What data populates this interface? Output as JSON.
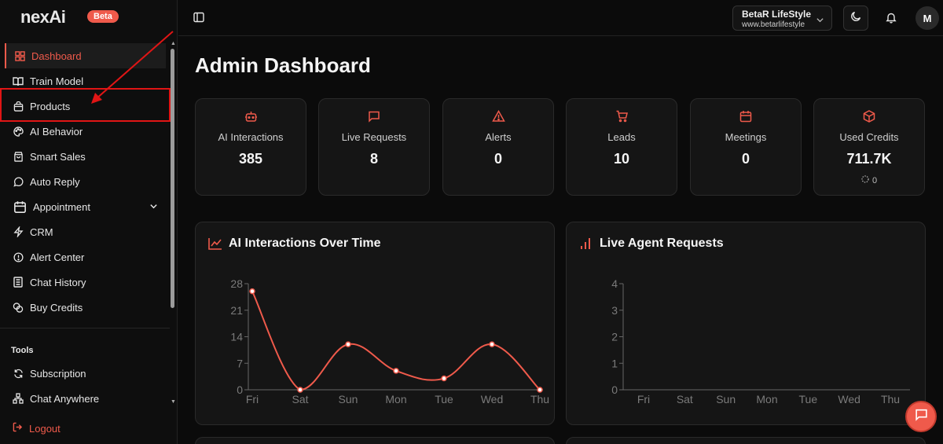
{
  "app": {
    "logo": "nexAi",
    "badge": "Beta"
  },
  "sidebar": {
    "items": [
      {
        "label": "Dashboard",
        "icon": "grid-icon"
      },
      {
        "label": "Train Model",
        "icon": "book-icon"
      },
      {
        "label": "Products",
        "icon": "bag-icon"
      },
      {
        "label": "AI Behavior",
        "icon": "palette-icon"
      },
      {
        "label": "Smart Sales",
        "icon": "shopping-bag-icon"
      },
      {
        "label": "Auto Reply",
        "icon": "message-circle-icon"
      },
      {
        "label": "Appointment",
        "icon": "calendar-icon"
      },
      {
        "label": "CRM",
        "icon": "zap-icon"
      },
      {
        "label": "Alert Center",
        "icon": "alert-circle-icon"
      },
      {
        "label": "Chat History",
        "icon": "file-text-icon"
      },
      {
        "label": "Buy Credits",
        "icon": "coins-icon"
      }
    ],
    "tools_label": "Tools",
    "tools": [
      {
        "label": "Subscription",
        "icon": "refresh-icon"
      },
      {
        "label": "Chat Anywhere",
        "icon": "network-icon"
      }
    ],
    "logout_label": "Logout"
  },
  "header": {
    "org_name": "BetaR LifeStyle",
    "org_url": "www.betarlifestyle",
    "avatar_initial": "M"
  },
  "main": {
    "title": "Admin Dashboard",
    "stats": [
      {
        "label": "AI Interactions",
        "value": "385",
        "icon": "bot-icon"
      },
      {
        "label": "Live Requests",
        "value": "8",
        "icon": "message-square-icon"
      },
      {
        "label": "Alerts",
        "value": "0",
        "icon": "alert-triangle-icon"
      },
      {
        "label": "Leads",
        "value": "10",
        "icon": "cart-icon"
      },
      {
        "label": "Meetings",
        "value": "0",
        "icon": "calendar-icon"
      },
      {
        "label": "Used Credits",
        "value": "711.7K",
        "sub": "0",
        "icon": "cube-icon"
      }
    ]
  },
  "colors": {
    "accent": "#ef5a4b",
    "background": "#0b0b0b",
    "card": "#151515"
  },
  "chart_data": [
    {
      "type": "line",
      "title": "AI Interactions Over Time",
      "categories": [
        "Fri",
        "Sat",
        "Sun",
        "Mon",
        "Tue",
        "Wed",
        "Thu"
      ],
      "values": [
        26,
        0,
        12,
        5,
        3,
        12,
        0
      ],
      "yticks": [
        "0",
        "7",
        "14",
        "21",
        "28"
      ],
      "ylim": [
        0,
        28
      ],
      "color": "#ef5a4b"
    },
    {
      "type": "bar",
      "title": "Live Agent Requests",
      "categories": [
        "Fri",
        "Sat",
        "Sun",
        "Mon",
        "Tue",
        "Wed",
        "Thu"
      ],
      "values": [
        0,
        0,
        0,
        0,
        0,
        0,
        0
      ],
      "yticks": [
        "0",
        "1",
        "2",
        "3",
        "4"
      ],
      "ylim": [
        0,
        4
      ],
      "color": "#ef5a4b"
    }
  ]
}
